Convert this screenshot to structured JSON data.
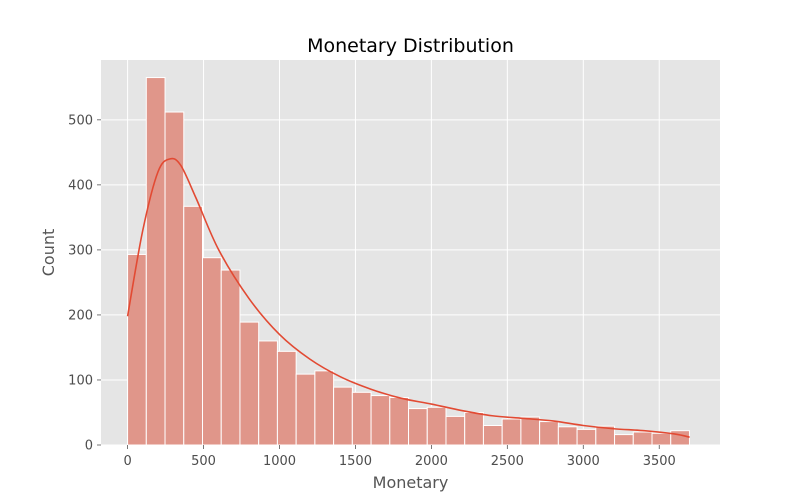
{
  "chart_data": {
    "type": "bar",
    "title": "Monetary Distribution",
    "xlabel": "Monetary",
    "ylabel": "Count",
    "xlim": [
      -175,
      3900
    ],
    "ylim": [
      0,
      592
    ],
    "xticks": [
      0,
      500,
      1000,
      1500,
      2000,
      2500,
      3000,
      3500
    ],
    "yticks": [
      0,
      100,
      200,
      300,
      400,
      500
    ],
    "grid": true,
    "bin_width": 123.3,
    "bins": [
      {
        "start": 0.0,
        "count": 293
      },
      {
        "start": 123.3,
        "count": 565
      },
      {
        "start": 246.6,
        "count": 512
      },
      {
        "start": 369.9,
        "count": 367
      },
      {
        "start": 493.2,
        "count": 288
      },
      {
        "start": 616.5,
        "count": 269
      },
      {
        "start": 739.8,
        "count": 189
      },
      {
        "start": 863.1,
        "count": 160
      },
      {
        "start": 986.4,
        "count": 144
      },
      {
        "start": 1109.7,
        "count": 109
      },
      {
        "start": 1233.0,
        "count": 114
      },
      {
        "start": 1356.3,
        "count": 89
      },
      {
        "start": 1479.6,
        "count": 81
      },
      {
        "start": 1602.9,
        "count": 76
      },
      {
        "start": 1726.2,
        "count": 73
      },
      {
        "start": 1849.5,
        "count": 56
      },
      {
        "start": 1972.8,
        "count": 58
      },
      {
        "start": 2096.1,
        "count": 44
      },
      {
        "start": 2219.4,
        "count": 50
      },
      {
        "start": 2342.7,
        "count": 30
      },
      {
        "start": 2466.0,
        "count": 40
      },
      {
        "start": 2589.3,
        "count": 43
      },
      {
        "start": 2712.6,
        "count": 36
      },
      {
        "start": 2835.9,
        "count": 28
      },
      {
        "start": 2959.2,
        "count": 24
      },
      {
        "start": 3082.5,
        "count": 29
      },
      {
        "start": 3205.8,
        "count": 16
      },
      {
        "start": 3329.1,
        "count": 20
      },
      {
        "start": 3452.4,
        "count": 18
      },
      {
        "start": 3575.7,
        "count": 22
      }
    ],
    "kde": {
      "x": [
        0,
        100,
        200,
        280,
        350,
        450,
        600,
        800,
        1000,
        1200,
        1400,
        1600,
        1800,
        2000,
        2200,
        2400,
        2600,
        2800,
        3000,
        3200,
        3400,
        3600,
        3700
      ],
      "y": [
        198,
        330,
        420,
        440,
        430,
        380,
        300,
        225,
        170,
        132,
        105,
        86,
        72,
        63,
        53,
        45,
        41,
        37,
        30,
        25,
        22,
        17,
        12
      ]
    },
    "colors": {
      "bar_fill": "#e0968a",
      "bar_stroke": "#ffffff",
      "kde_line": "#e24a33",
      "plot_bg": "#e5e5e5",
      "grid": "#ffffff"
    }
  }
}
